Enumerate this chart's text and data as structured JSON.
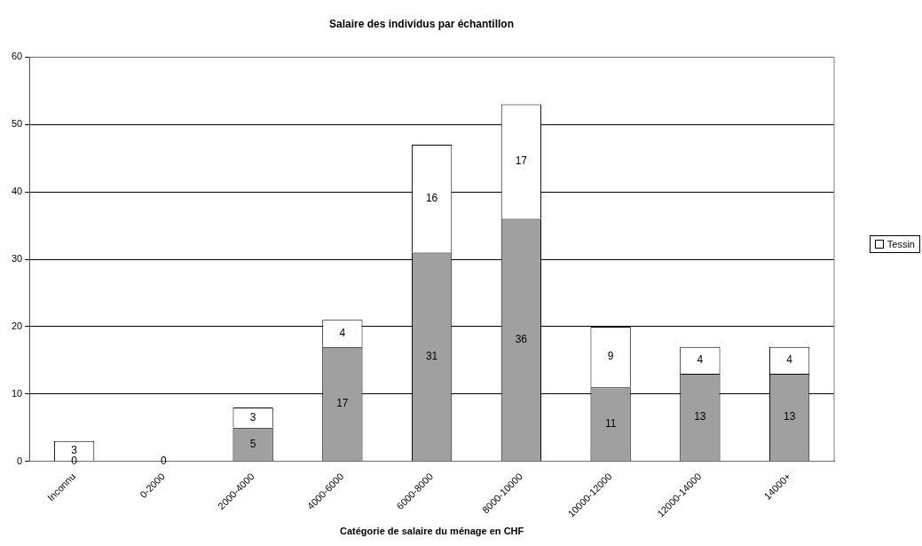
{
  "chart_data": {
    "type": "bar",
    "title": "Salaire des individus par échantillon",
    "xlabel": "Catégorie de salaire du ménage en CHF",
    "categories": [
      "Inconnu",
      "0-2000",
      "2000-4000",
      "4000-6000",
      "6000-8000",
      "8000-10000",
      "10000-12000",
      "12000-14000",
      "14000+"
    ],
    "stacked": true,
    "grid": "y",
    "legend": "right",
    "series": [
      {
        "color": "#a0a0a0",
        "values": [
          0,
          0,
          5,
          17,
          31,
          36,
          11,
          13,
          13
        ],
        "value_labels": [
          "0",
          "0",
          "5",
          "17",
          "31",
          "36",
          "11",
          "13",
          "13"
        ]
      },
      {
        "name": "Tessin",
        "color": "#ffffff",
        "values": [
          3,
          0,
          3,
          4,
          16,
          17,
          9,
          4,
          4
        ],
        "value_labels": [
          "3",
          null,
          "3",
          "4",
          "16",
          "17",
          "9",
          "4",
          "4"
        ]
      }
    ],
    "ylim": [
      0,
      60
    ],
    "yticks": [
      0,
      10,
      20,
      30,
      40,
      50,
      60
    ]
  }
}
